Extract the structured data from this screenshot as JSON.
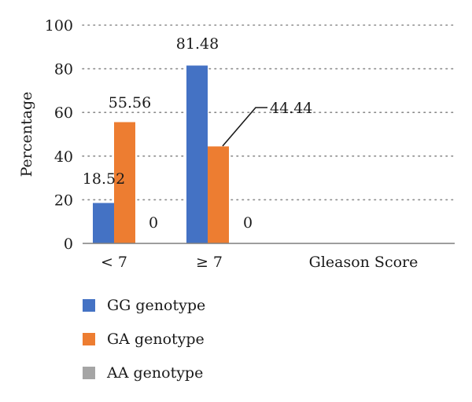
{
  "chart_data": {
    "type": "bar",
    "title": "",
    "xlabel": "Gleason Score",
    "ylabel": "Percentage",
    "categories": [
      "< 7",
      "≥ 7"
    ],
    "ylim": [
      0,
      100
    ],
    "yticks": [
      0,
      20,
      40,
      60,
      80,
      100
    ],
    "grid": "dotted horizontal",
    "legend_position": "bottom",
    "series": [
      {
        "name": "GG genotype",
        "color": "#4472C4",
        "values": [
          18.52,
          81.48
        ],
        "labels": [
          "18.52",
          "81.48"
        ]
      },
      {
        "name": "GA genotype",
        "color": "#ED7D31",
        "values": [
          55.56,
          44.44
        ],
        "labels": [
          "55.56",
          "44.44"
        ]
      },
      {
        "name": "AA genotype",
        "color": "#A5A5A5",
        "values": [
          0,
          0
        ],
        "labels": [
          "0",
          "0"
        ]
      }
    ]
  }
}
